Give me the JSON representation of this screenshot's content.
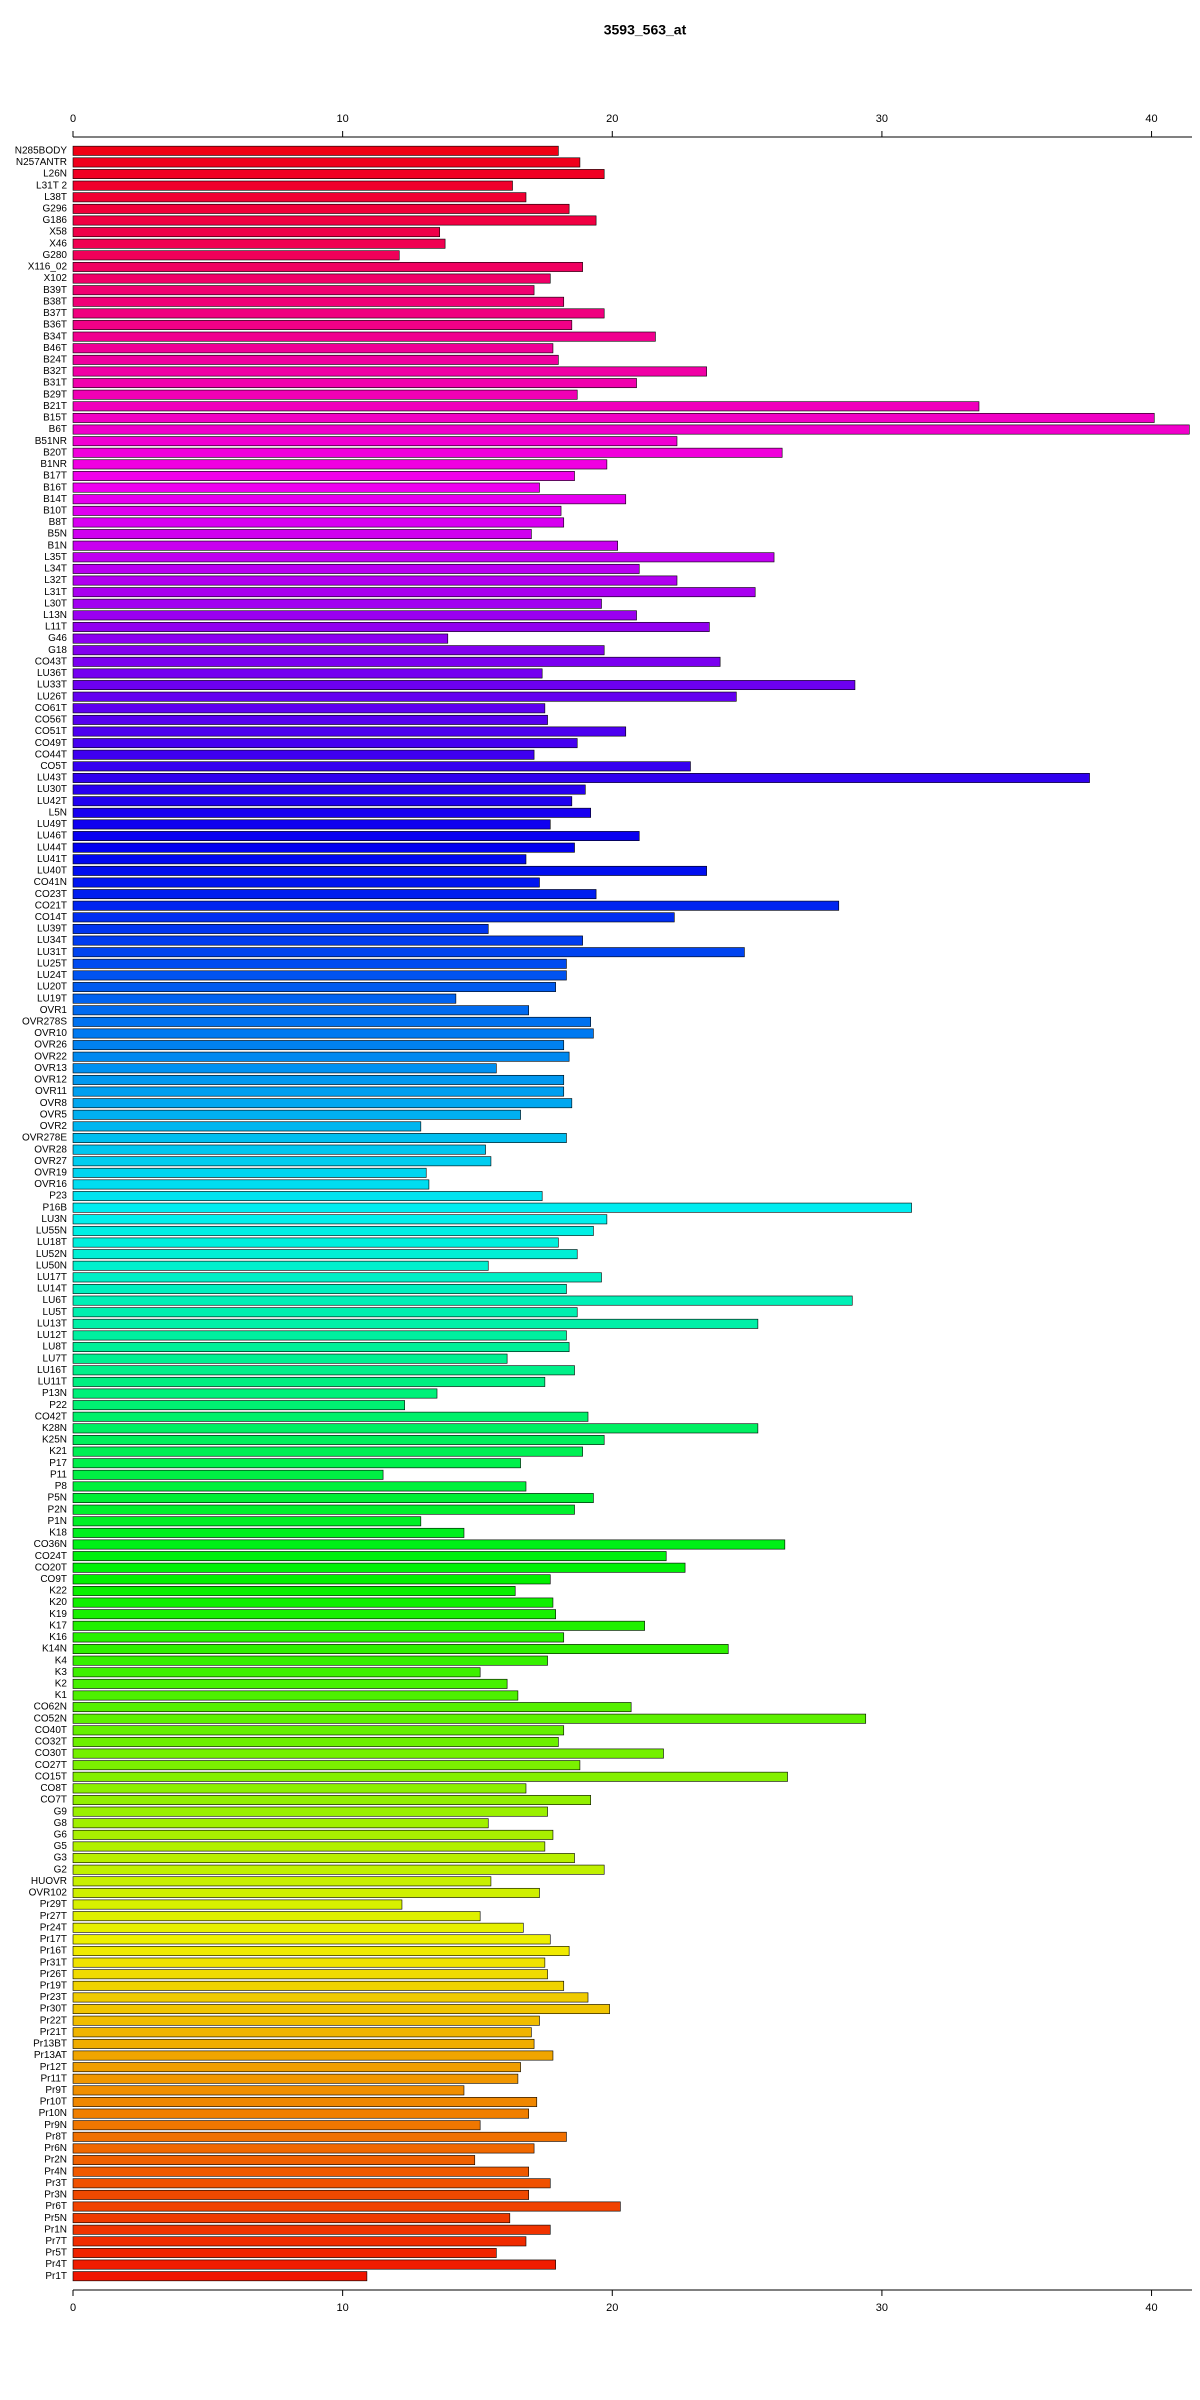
{
  "chart_data": {
    "type": "barh",
    "title": "3593_563_at",
    "categories": [
      "N285BODY",
      "N257ANTR",
      "L26N",
      "L31T 2",
      "L38T",
      "G296",
      "G186",
      "X58",
      "X46",
      "G280",
      "X116_02",
      "X102",
      "B39T",
      "B38T",
      "B37T",
      "B36T",
      "B34T",
      "B46T",
      "B24T",
      "B32T",
      "B31T",
      "B29T",
      "B21T",
      "B15T",
      "B6T",
      "B51NR",
      "B20T",
      "B1NR",
      "B17T",
      "B16T",
      "B14T",
      "B10T",
      "B8T",
      "B5N",
      "B1N",
      "L35T",
      "L34T",
      "L32T",
      "L31T",
      "L30T",
      "L13N",
      "L11T",
      "G46",
      "G18",
      "CO43T",
      "LU36T",
      "LU33T",
      "LU26T",
      "CO61T",
      "CO56T",
      "CO51T",
      "CO49T",
      "CO44T",
      "CO5T",
      "LU43T",
      "LU30T",
      "LU42T",
      "L5N",
      "LU49T",
      "LU46T",
      "LU44T",
      "LU41T",
      "LU40T",
      "CO41N",
      "CO23T",
      "CO21T",
      "CO14T",
      "LU39T",
      "LU34T",
      "LU31T",
      "LU25T",
      "LU24T",
      "LU20T",
      "LU19T",
      "OVR1",
      "OVR278S",
      "OVR10",
      "OVR26",
      "OVR22",
      "OVR13",
      "OVR12",
      "OVR11",
      "OVR8",
      "OVR5",
      "OVR2",
      "OVR278E",
      "OVR28",
      "OVR27",
      "OVR19",
      "OVR16",
      "P23",
      "P16B",
      "LU3N",
      "LU55N",
      "LU18T",
      "LU52N",
      "LU50N",
      "LU17T",
      "LU14T",
      "LU6T",
      "LU5T",
      "LU13T",
      "LU12T",
      "LU8T",
      "LU7T",
      "LU16T",
      "LU11T",
      "P13N",
      "P22",
      "CO42T",
      "K28N",
      "K25N",
      "K21",
      "P17",
      "P11",
      "P8",
      "P5N",
      "P2N",
      "P1N",
      "K18",
      "CO36N",
      "CO24T",
      "CO20T",
      "CO9T",
      "K22",
      "K20",
      "K19",
      "K17",
      "K16",
      "K14N",
      "K4",
      "K3",
      "K2",
      "K1",
      "CO62N",
      "CO52N",
      "CO40T",
      "CO32T",
      "CO30T",
      "CO27T",
      "CO15T",
      "CO8T",
      "CO7T",
      "G9",
      "G8",
      "G6",
      "G5",
      "G3",
      "G2",
      "HUOVR",
      "OVR102",
      "Pr29T",
      "Pr27T",
      "Pr24T",
      "Pr17T",
      "Pr16T",
      "Pr31T",
      "Pr26T",
      "Pr19T",
      "Pr23T",
      "Pr30T",
      "Pr22T",
      "Pr21T",
      "Pr13BT",
      "Pr13AT",
      "Pr12T",
      "Pr11T",
      "Pr9T",
      "Pr10T",
      "Pr10N",
      "Pr9N",
      "Pr8T",
      "Pr6N",
      "Pr2N",
      "Pr4N",
      "Pr3T",
      "Pr3N",
      "Pr6T",
      "Pr5N",
      "Pr1N",
      "Pr7T",
      "Pr5T",
      "Pr4T",
      "Pr1T"
    ],
    "values": [
      18.0,
      18.8,
      19.7,
      16.3,
      16.8,
      18.4,
      19.4,
      13.6,
      13.8,
      12.1,
      18.9,
      17.7,
      17.1,
      18.2,
      19.7,
      18.5,
      21.6,
      17.8,
      18.0,
      23.5,
      20.9,
      18.7,
      33.6,
      40.1,
      41.4,
      22.4,
      26.3,
      19.8,
      18.6,
      17.3,
      20.5,
      18.1,
      18.2,
      17.0,
      20.2,
      26.0,
      21.0,
      22.4,
      25.3,
      19.6,
      20.9,
      23.6,
      13.9,
      19.7,
      24.0,
      17.4,
      29.0,
      24.6,
      17.5,
      17.6,
      20.5,
      18.7,
      17.1,
      22.9,
      37.7,
      19.0,
      18.5,
      19.2,
      17.7,
      21.0,
      18.6,
      16.8,
      23.5,
      17.3,
      19.4,
      28.4,
      22.3,
      15.4,
      18.9,
      24.9,
      18.3,
      18.3,
      17.9,
      14.2,
      16.9,
      19.2,
      19.3,
      18.2,
      18.4,
      15.7,
      18.2,
      18.2,
      18.5,
      16.6,
      12.9,
      18.3,
      15.3,
      15.5,
      13.1,
      13.2,
      17.4,
      31.1,
      19.8,
      19.3,
      18.0,
      18.7,
      15.4,
      19.6,
      18.3,
      28.9,
      18.7,
      25.4,
      18.3,
      18.4,
      16.1,
      18.6,
      17.5,
      13.5,
      12.3,
      19.1,
      25.4,
      19.7,
      18.9,
      16.6,
      11.5,
      16.8,
      19.3,
      18.6,
      12.9,
      14.5,
      26.4,
      22.0,
      22.7,
      17.7,
      16.4,
      17.8,
      17.9,
      21.2,
      18.2,
      24.3,
      17.6,
      15.1,
      16.1,
      16.5,
      20.7,
      29.4,
      18.2,
      18.0,
      21.9,
      18.8,
      26.5,
      16.8,
      19.2,
      17.6,
      15.4,
      17.8,
      17.5,
      18.6,
      19.7,
      15.5,
      17.3,
      12.2,
      15.1,
      16.7,
      17.7,
      18.4,
      17.5,
      17.6,
      18.2,
      19.1,
      19.9,
      17.3,
      17.0,
      17.1,
      17.8,
      16.6,
      16.5,
      14.5,
      17.2,
      16.9,
      15.1,
      18.3,
      17.1,
      14.9,
      16.9,
      17.7,
      16.9,
      20.3,
      16.2,
      17.7,
      16.8,
      15.7,
      17.9,
      10.9
    ],
    "hue_range": [
      355,
      5
    ],
    "xlim": [
      0,
      41.5
    ],
    "xticks": [
      0,
      10,
      20,
      30,
      40
    ]
  }
}
